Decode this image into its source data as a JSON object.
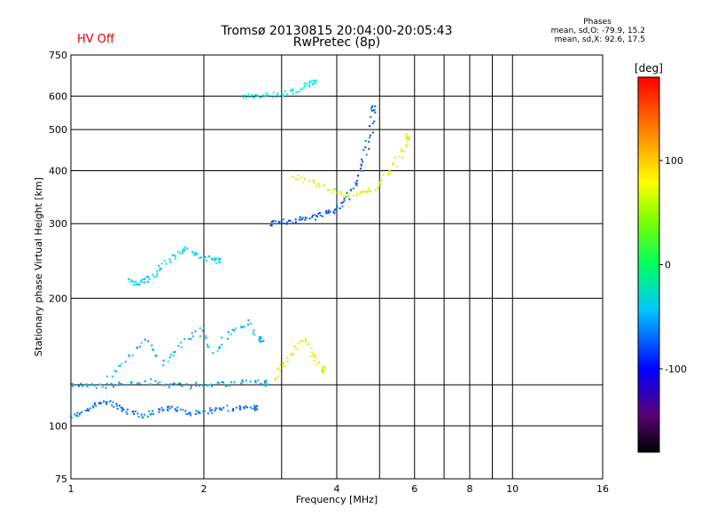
{
  "header": {
    "title_line1": "Tromsø 20130815 20:04:00-20:05:43",
    "title_line2": "RwPretec (8p)",
    "hv_status": "HV Off",
    "hv_color": "#e00000"
  },
  "stats": {
    "heading": "Phases",
    "line_o": "mean, sd,O: -79.9, 15.2",
    "line_x": "mean, sd,X:  92.6, 17.5"
  },
  "chart_data": {
    "type": "scatter",
    "xlabel": "Frequency [MHz]",
    "ylabel": "Stationary phase Virtual Height [km]",
    "xscale": "log",
    "yscale": "log",
    "xlim": [
      1,
      16
    ],
    "ylim": [
      75,
      750
    ],
    "xticks": [
      1,
      2,
      4,
      6,
      8,
      10,
      16
    ],
    "yticks": [
      75,
      100,
      200,
      300,
      400,
      500,
      600,
      750
    ],
    "xgrid_extra": [
      3,
      5,
      7,
      9
    ],
    "ygrid_extra": [
      125
    ],
    "colorbar": {
      "label": "[deg]",
      "range": [
        -180,
        180
      ],
      "ticks": [
        -100,
        0,
        100
      ],
      "colormap": "rainbow"
    },
    "series": [
      {
        "trace": "O-low",
        "x": [
          1.0,
          1.06,
          1.12,
          1.18,
          1.24,
          1.3,
          1.38,
          1.46,
          1.55,
          1.65,
          1.75,
          1.87,
          2.0,
          2.13,
          2.28,
          2.45,
          2.62
        ],
        "y": [
          105,
          107,
          111,
          114,
          113,
          109,
          107,
          106,
          108,
          110,
          109,
          107,
          108,
          109,
          110,
          110,
          110
        ],
        "phase": -100
      },
      {
        "trace": "O-125",
        "x": [
          1.0,
          1.1,
          1.22,
          1.35,
          1.5,
          1.68,
          1.85,
          2.05,
          2.25,
          2.5,
          2.75
        ],
        "y": [
          125,
          125,
          124,
          126,
          127,
          125,
          124,
          126,
          125,
          127,
          126
        ],
        "phase": -85
      },
      {
        "trace": "O-mid",
        "x": [
          1.22,
          1.35,
          1.48,
          1.62,
          1.78,
          1.95,
          2.1,
          2.3,
          2.5,
          2.7
        ],
        "y": [
          130,
          145,
          160,
          140,
          155,
          170,
          150,
          165,
          175,
          160
        ],
        "phase": -80
      },
      {
        "trace": "O-220",
        "x": [
          1.36,
          1.4,
          1.45,
          1.52,
          1.6,
          1.7,
          1.8,
          1.92,
          2.05,
          2.15
        ],
        "y": [
          220,
          217,
          218,
          224,
          236,
          250,
          262,
          255,
          248,
          245
        ],
        "phase": -70
      },
      {
        "trace": "O-300",
        "x": [
          2.8,
          3.0,
          3.2,
          3.4,
          3.6,
          3.8,
          4.0,
          4.2,
          4.4,
          4.6,
          4.75,
          4.85
        ],
        "y": [
          300,
          302,
          305,
          308,
          312,
          318,
          325,
          340,
          370,
          420,
          480,
          560
        ],
        "phase": -110
      },
      {
        "trace": "O-600",
        "x": [
          2.45,
          2.6,
          2.8,
          3.0,
          3.2,
          3.4,
          3.55
        ],
        "y": [
          600,
          598,
          602,
          605,
          615,
          635,
          645
        ],
        "phase": -60
      },
      {
        "trace": "X-low",
        "x": [
          2.9,
          3.05,
          3.2,
          3.4,
          3.55,
          3.75
        ],
        "y": [
          130,
          140,
          150,
          160,
          145,
          135
        ],
        "phase": 95
      },
      {
        "trace": "X-350",
        "x": [
          3.2,
          3.5,
          3.8,
          4.1,
          4.4,
          4.7,
          5.0,
          5.3,
          5.6,
          5.8
        ],
        "y": [
          390,
          375,
          362,
          352,
          352,
          358,
          372,
          400,
          440,
          480
        ],
        "phase": 90
      }
    ]
  }
}
